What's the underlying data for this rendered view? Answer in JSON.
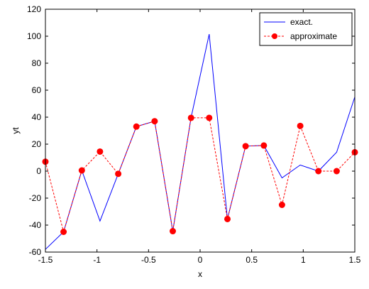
{
  "chart_data": {
    "type": "line",
    "title": "",
    "xlabel": "x",
    "ylabel": "yt",
    "xlim": [
      -1.5,
      1.5
    ],
    "ylim": [
      -60,
      120
    ],
    "xticks": [
      -1.5,
      -1,
      -0.5,
      0,
      0.5,
      1,
      1.5
    ],
    "yticks": [
      -60,
      -40,
      -20,
      0,
      20,
      40,
      60,
      80,
      100,
      120
    ],
    "xtick_labels": [
      "-1.5",
      "-1",
      "-0.5",
      "0",
      "0.5",
      "1",
      "1.5"
    ],
    "ytick_labels": [
      "-60",
      "-40",
      "-20",
      "0",
      "20",
      "40",
      "60",
      "80",
      "100",
      "120"
    ],
    "grid": false,
    "legend_position": "top-right",
    "series": [
      {
        "name": "exact.",
        "color": "#0000ff",
        "style": "solid",
        "marker": "none",
        "x": [
          -1.5,
          -1.324,
          -1.147,
          -0.971,
          -0.794,
          -0.618,
          -0.441,
          -0.265,
          -0.088,
          0.088,
          0.265,
          0.441,
          0.618,
          0.794,
          0.971,
          1.147,
          1.324,
          1.5
        ],
        "y": [
          -58,
          -45,
          0.5,
          -37,
          -2,
          33,
          37,
          -44.5,
          39.5,
          101.5,
          -35.5,
          18.5,
          19,
          -5,
          4.5,
          0,
          14,
          55
        ]
      },
      {
        "name": "approximate",
        "color": "#ff0000",
        "style": "dashed",
        "marker": "circle",
        "x": [
          -1.5,
          -1.324,
          -1.147,
          -0.971,
          -0.794,
          -0.618,
          -0.441,
          -0.265,
          -0.088,
          0.088,
          0.265,
          0.441,
          0.618,
          0.794,
          0.971,
          1.147,
          1.324,
          1.5
        ],
        "y": [
          7,
          -45,
          0.5,
          14.5,
          -2,
          33,
          37,
          -44.5,
          39.5,
          39.5,
          -35.5,
          18.5,
          19,
          -25,
          33.5,
          0,
          0,
          14
        ]
      }
    ]
  }
}
